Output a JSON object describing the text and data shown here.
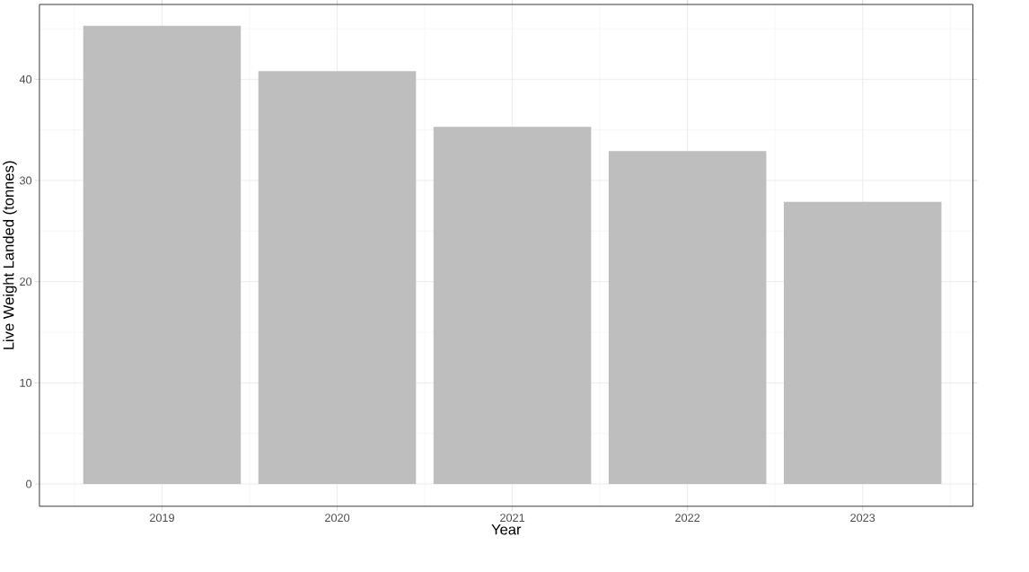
{
  "chart_data": {
    "type": "bar",
    "xlabel": "Year",
    "ylabel": "Live Weight Landed (tonnes)",
    "categories": [
      "2019",
      "2020",
      "2021",
      "2022",
      "2023"
    ],
    "values": [
      45.3,
      40.8,
      35.3,
      32.9,
      27.9
    ],
    "color": "#bebebe",
    "ylim": [
      -2.2,
      47.4
    ],
    "yticks": [
      0,
      10,
      20,
      30,
      40
    ],
    "grid": true
  }
}
